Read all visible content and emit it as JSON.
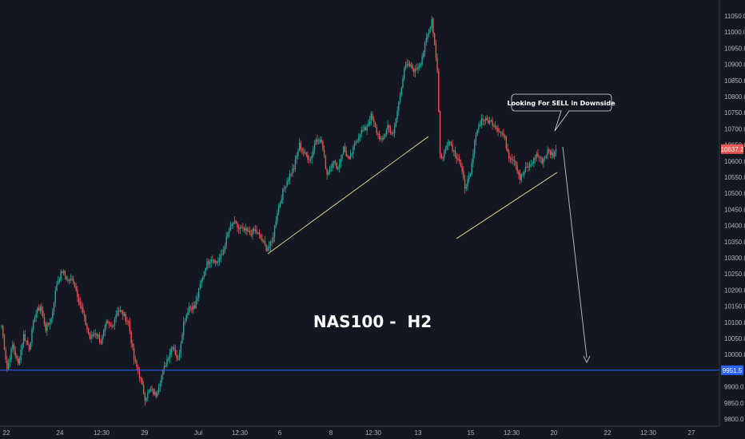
{
  "chart_data": {
    "type": "candlestick",
    "title": "NAS100 -  H2",
    "xlabel": "",
    "ylabel": "",
    "ylim": [
      9780,
      11080
    ],
    "y_ticks": [
      "11050.0",
      "11000.0",
      "10950.0",
      "10900.0",
      "10850.0",
      "10800.0",
      "10750.0",
      "10700.0",
      "10650.0",
      "10600.0",
      "10550.0",
      "10500.0",
      "10450.0",
      "10400.0",
      "10350.0",
      "10300.0",
      "10250.0",
      "10200.0",
      "10150.0",
      "10100.0",
      "10050.0",
      "10000.0",
      "9950.0",
      "9900.0",
      "9850.0",
      "9800.0"
    ],
    "x_ticks": [
      "22",
      "24",
      "12:30",
      "29",
      "Jul",
      "12:30",
      "6",
      "8",
      "12:30",
      "13",
      "15",
      "12:30",
      "20",
      "22",
      "12:30",
      "27"
    ],
    "current_price_label": "10637.2",
    "support_price_label": "9951.5",
    "support_price": 9951.5,
    "annotation": "Looking For SELL in Downside",
    "up_color": "#26a69a",
    "down_color": "#ef5350",
    "support_line_color": "#2962ff",
    "trend_line_color": "#f0e68c",
    "grid": false,
    "path": [
      [
        0,
        10090
      ],
      [
        4,
        9955
      ],
      [
        8,
        10030
      ],
      [
        12,
        9970
      ],
      [
        16,
        10060
      ],
      [
        20,
        10020
      ],
      [
        24,
        10120
      ],
      [
        28,
        10150
      ],
      [
        32,
        10080
      ],
      [
        36,
        10110
      ],
      [
        40,
        10220
      ],
      [
        44,
        10260
      ],
      [
        48,
        10230
      ],
      [
        52,
        10230
      ],
      [
        56,
        10170
      ],
      [
        60,
        10110
      ],
      [
        64,
        10050
      ],
      [
        68,
        10070
      ],
      [
        72,
        10040
      ],
      [
        76,
        10095
      ],
      [
        80,
        10085
      ],
      [
        84,
        10140
      ],
      [
        88,
        10125
      ],
      [
        92,
        10100
      ],
      [
        96,
        9985
      ],
      [
        100,
        9935
      ],
      [
        104,
        9865
      ],
      [
        108,
        9890
      ],
      [
        112,
        9875
      ],
      [
        116,
        9935
      ],
      [
        120,
        9985
      ],
      [
        124,
        10030
      ],
      [
        128,
        9980
      ],
      [
        132,
        10100
      ],
      [
        136,
        10150
      ],
      [
        140,
        10145
      ],
      [
        144,
        10215
      ],
      [
        148,
        10275
      ],
      [
        152,
        10300
      ],
      [
        156,
        10285
      ],
      [
        160,
        10310
      ],
      [
        164,
        10375
      ],
      [
        168,
        10410
      ],
      [
        172,
        10390
      ],
      [
        176,
        10385
      ],
      [
        180,
        10375
      ],
      [
        184,
        10385
      ],
      [
        188,
        10360
      ],
      [
        192,
        10330
      ],
      [
        196,
        10345
      ],
      [
        200,
        10445
      ],
      [
        204,
        10505
      ],
      [
        208,
        10550
      ],
      [
        212,
        10580
      ],
      [
        216,
        10650
      ],
      [
        220,
        10620
      ],
      [
        224,
        10605
      ],
      [
        228,
        10670
      ],
      [
        232,
        10660
      ],
      [
        236,
        10560
      ],
      [
        240,
        10600
      ],
      [
        244,
        10580
      ],
      [
        248,
        10640
      ],
      [
        252,
        10600
      ],
      [
        256,
        10650
      ],
      [
        260,
        10690
      ],
      [
        264,
        10700
      ],
      [
        268,
        10740
      ],
      [
        272,
        10690
      ],
      [
        276,
        10660
      ],
      [
        280,
        10710
      ],
      [
        284,
        10680
      ],
      [
        288,
        10780
      ],
      [
        292,
        10890
      ],
      [
        296,
        10895
      ],
      [
        300,
        10880
      ],
      [
        304,
        10910
      ],
      [
        308,
        10975
      ],
      [
        312,
        11040
      ],
      [
        316,
        10885
      ],
      [
        318,
        10620
      ],
      [
        320,
        10610
      ],
      [
        324,
        10670
      ],
      [
        328,
        10630
      ],
      [
        332,
        10600
      ],
      [
        336,
        10520
      ],
      [
        340,
        10555
      ],
      [
        344,
        10690
      ],
      [
        348,
        10730
      ],
      [
        352,
        10725
      ],
      [
        356,
        10720
      ],
      [
        360,
        10700
      ],
      [
        364,
        10680
      ],
      [
        368,
        10615
      ],
      [
        372,
        10605
      ],
      [
        376,
        10545
      ],
      [
        380,
        10575
      ],
      [
        384,
        10590
      ],
      [
        388,
        10620
      ],
      [
        392,
        10600
      ],
      [
        396,
        10630
      ],
      [
        400,
        10620
      ],
      [
        402,
        10637.2
      ]
    ]
  }
}
